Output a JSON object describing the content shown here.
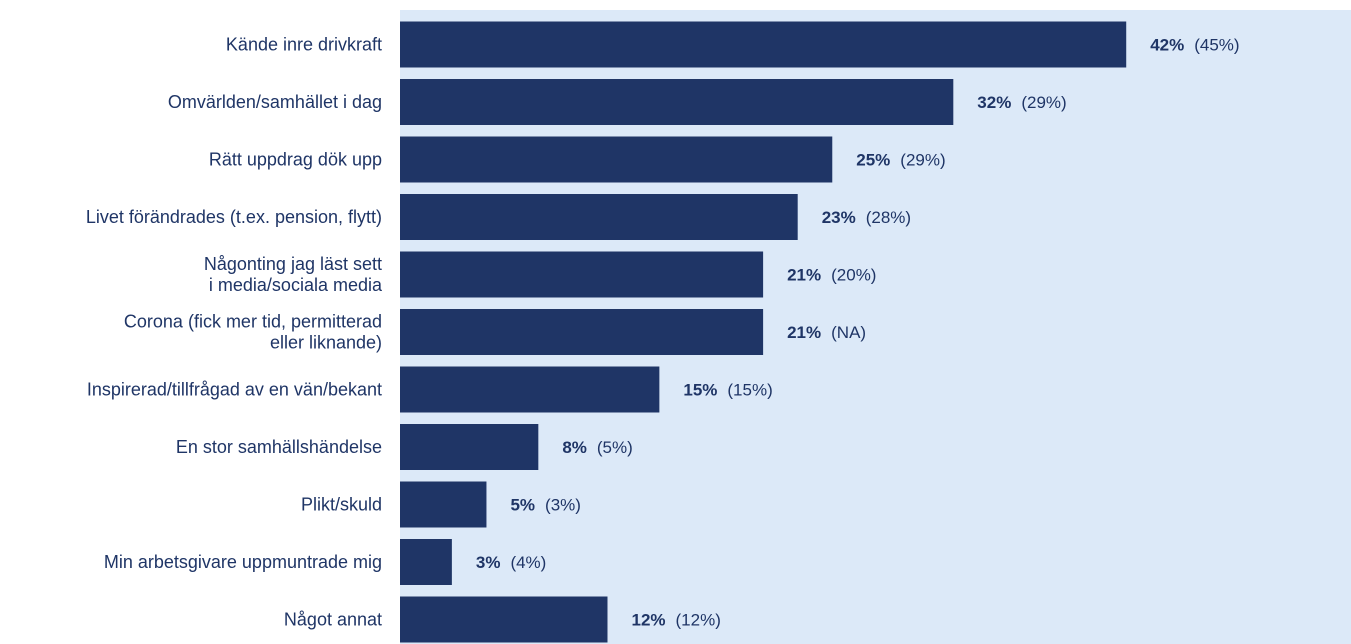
{
  "chart_data": {
    "type": "bar",
    "orientation": "horizontal",
    "categories": [
      [
        "Kände inre drivkraft"
      ],
      [
        "Omvärlden/samhället i dag"
      ],
      [
        "Rätt uppdrag dök upp"
      ],
      [
        "Livet förändrades (t.ex. pension, flytt)"
      ],
      [
        "Någonting jag läst sett",
        "i media/sociala media"
      ],
      [
        "Corona (fick mer tid, permitterad",
        "eller liknande)"
      ],
      [
        "Inspirerad/tillfrågad av en vän/bekant"
      ],
      [
        "En stor samhällshändelse"
      ],
      [
        "Plikt/skuld"
      ],
      [
        "Min arbetsgivare uppmuntrade mig"
      ],
      [
        "Något annat"
      ]
    ],
    "values": [
      42,
      32,
      25,
      23,
      21,
      21,
      15,
      8,
      5,
      3,
      12
    ],
    "value_labels": [
      "42%",
      "32%",
      "25%",
      "23%",
      "21%",
      "21%",
      "15%",
      "8%",
      "5%",
      "3%",
      "12%"
    ],
    "previous_labels": [
      "(45%)",
      "(29%)",
      "(29%)",
      "(28%)",
      "(20%)",
      "(NA)",
      "(15%)",
      "(5%)",
      "(3%)",
      "(4%)",
      "(12%)"
    ],
    "xlim": [
      0,
      55
    ],
    "colors": {
      "bar": "#1f3566",
      "plot_background": "#dce9f8",
      "label_text": "#1f3566"
    }
  }
}
